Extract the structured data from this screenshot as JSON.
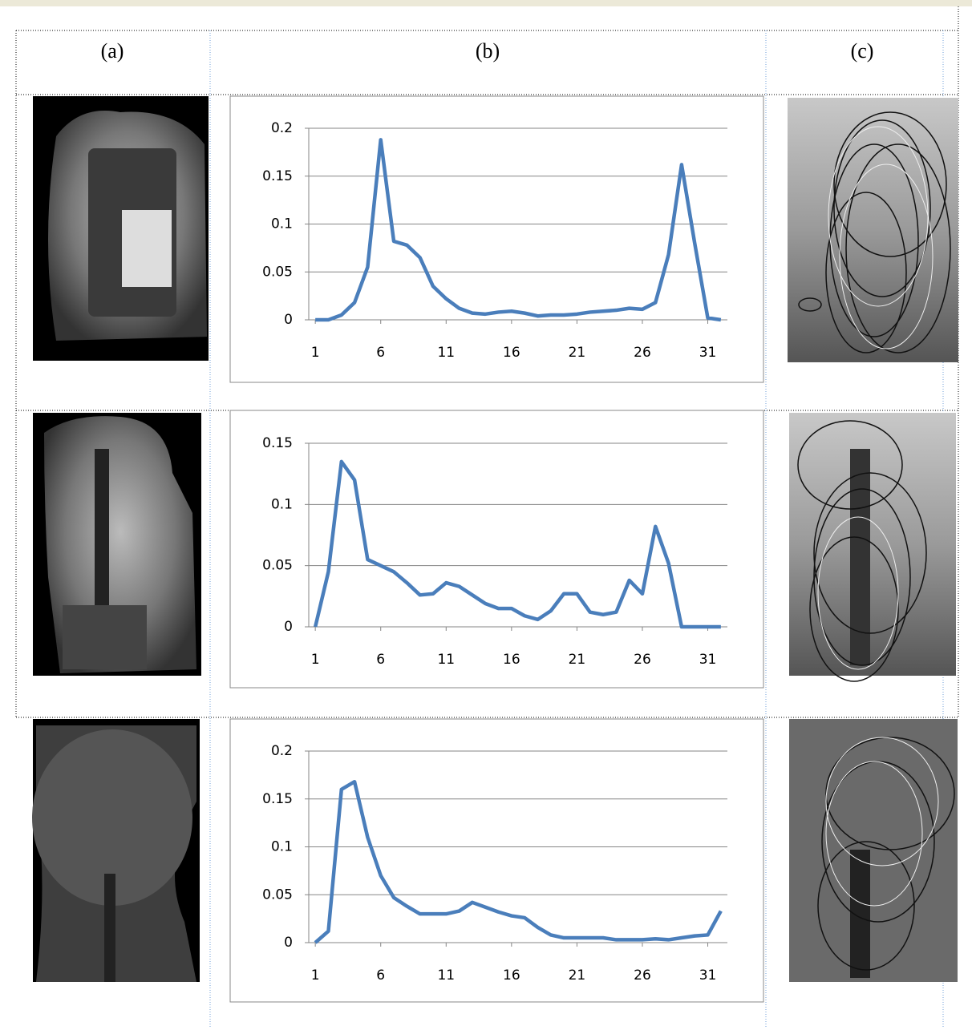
{
  "columns": [
    "(a)",
    "(b)",
    "(c)"
  ],
  "chart_data": [
    {
      "type": "line",
      "x": [
        1,
        2,
        3,
        4,
        5,
        6,
        7,
        8,
        9,
        10,
        11,
        12,
        13,
        14,
        15,
        16,
        17,
        18,
        19,
        20,
        21,
        22,
        23,
        24,
        25,
        26,
        27,
        28,
        29,
        30,
        31,
        32
      ],
      "series": [
        {
          "color": "#4a7ebb",
          "values": [
            0,
            0,
            0.005,
            0.018,
            0.055,
            0.188,
            0.082,
            0.078,
            0.065,
            0.035,
            0.022,
            0.012,
            0.007,
            0.006,
            0.008,
            0.009,
            0.007,
            0.004,
            0.005,
            0.005,
            0.006,
            0.008,
            0.009,
            0.01,
            0.012,
            0.011,
            0.018,
            0.068,
            0.162,
            0.08,
            0.002,
            0
          ]
        }
      ],
      "xlim": [
        0.5,
        32.5
      ],
      "xticks": [
        1,
        6,
        11,
        16,
        21,
        26,
        31
      ],
      "ylim": [
        0,
        0.2
      ],
      "yticks": [
        0,
        0.05,
        0.1,
        0.15,
        0.2
      ],
      "grid": true
    },
    {
      "type": "line",
      "x": [
        1,
        2,
        3,
        4,
        5,
        6,
        7,
        8,
        9,
        10,
        11,
        12,
        13,
        14,
        15,
        16,
        17,
        18,
        19,
        20,
        21,
        22,
        23,
        24,
        25,
        26,
        27,
        28,
        29,
        30,
        31,
        32
      ],
      "series": [
        {
          "color": "#4a7ebb",
          "values": [
            0,
            0.045,
            0.135,
            0.12,
            0.055,
            0.05,
            0.045,
            0.036,
            0.026,
            0.027,
            0.036,
            0.033,
            0.026,
            0.019,
            0.015,
            0.015,
            0.009,
            0.006,
            0.013,
            0.027,
            0.027,
            0.012,
            0.01,
            0.012,
            0.038,
            0.027,
            0.082,
            0.052,
            0,
            0,
            0,
            0
          ]
        }
      ],
      "xlim": [
        0.5,
        32.5
      ],
      "xticks": [
        1,
        6,
        11,
        16,
        21,
        26,
        31
      ],
      "ylim": [
        0,
        0.15
      ],
      "yticks": [
        0,
        0.05,
        0.1,
        0.15
      ],
      "grid": true
    },
    {
      "type": "line",
      "x": [
        1,
        2,
        3,
        4,
        5,
        6,
        7,
        8,
        9,
        10,
        11,
        12,
        13,
        14,
        15,
        16,
        17,
        18,
        19,
        20,
        21,
        22,
        23,
        24,
        25,
        26,
        27,
        28,
        29,
        30,
        31,
        32
      ],
      "series": [
        {
          "color": "#4a7ebb",
          "values": [
            0,
            0.012,
            0.16,
            0.168,
            0.11,
            0.07,
            0.047,
            0.038,
            0.03,
            0.03,
            0.03,
            0.033,
            0.042,
            0.037,
            0.032,
            0.028,
            0.026,
            0.016,
            0.008,
            0.005,
            0.005,
            0.005,
            0.005,
            0.003,
            0.003,
            0.003,
            0.004,
            0.003,
            0.005,
            0.007,
            0.008,
            0.033
          ]
        }
      ],
      "xlim": [
        0.5,
        32.5
      ],
      "xticks": [
        1,
        6,
        11,
        16,
        21,
        26,
        31
      ],
      "ylim": [
        0,
        0.2
      ],
      "yticks": [
        0,
        0.05,
        0.1,
        0.15,
        0.2
      ],
      "grid": true
    }
  ]
}
